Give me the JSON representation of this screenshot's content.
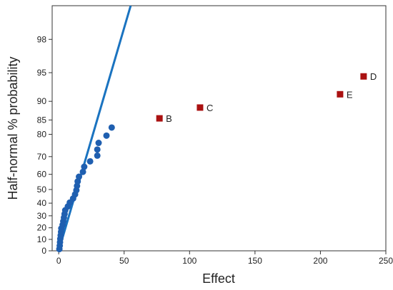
{
  "chart_data": {
    "type": "scatter",
    "title": "",
    "xlabel": "Effect",
    "ylabel": "Half-normal % probability",
    "xlim": [
      -5,
      250
    ],
    "ylim": [
      0,
      99.3
    ],
    "x_ticks": [
      0,
      50,
      100,
      150,
      200,
      250
    ],
    "x_tick_labels": [
      "0",
      "50",
      "100",
      "150",
      "200",
      "250"
    ],
    "y_ticks": [
      0,
      10,
      20,
      30,
      40,
      50,
      60,
      70,
      80,
      85,
      90,
      95,
      98
    ],
    "y_tick_labels": [
      "0",
      "10",
      "20",
      "30",
      "40",
      "50",
      "60",
      "70",
      "80",
      "85",
      "90",
      "95",
      "98"
    ],
    "y_scale": "half-normal probability",
    "grid": false,
    "legend": "none",
    "reference_line": {
      "color": "#1a73c0",
      "points": [
        [
          0,
          0
        ],
        [
          55,
          99.3
        ]
      ]
    },
    "series": [
      {
        "marker": "circle",
        "color": "#1f5fb0",
        "points": [
          {
            "x": 0.5,
            "y": 1.5
          },
          {
            "x": 0.8,
            "y": 4.5
          },
          {
            "x": 1.0,
            "y": 7.5
          },
          {
            "x": 1.2,
            "y": 10.5
          },
          {
            "x": 1.5,
            "y": 13.5
          },
          {
            "x": 1.8,
            "y": 16.5
          },
          {
            "x": 2.0,
            "y": 19.5
          },
          {
            "x": 3.0,
            "y": 22.5
          },
          {
            "x": 3.5,
            "y": 25.5
          },
          {
            "x": 4.0,
            "y": 28.5
          },
          {
            "x": 4.5,
            "y": 31.5
          },
          {
            "x": 5.0,
            "y": 34.5
          },
          {
            "x": 7.0,
            "y": 37.5
          },
          {
            "x": 8.5,
            "y": 40.5
          },
          {
            "x": 11.0,
            "y": 43.5
          },
          {
            "x": 12.5,
            "y": 46.5
          },
          {
            "x": 13.5,
            "y": 49.5
          },
          {
            "x": 14.0,
            "y": 52.5
          },
          {
            "x": 14.5,
            "y": 55.5
          },
          {
            "x": 15.5,
            "y": 58.5
          },
          {
            "x": 18.5,
            "y": 61.5
          },
          {
            "x": 19.5,
            "y": 64.5
          },
          {
            "x": 24.0,
            "y": 67.5
          },
          {
            "x": 29.5,
            "y": 70.5
          },
          {
            "x": 29.5,
            "y": 73.5
          },
          {
            "x": 30.5,
            "y": 76.5
          },
          {
            "x": 36.5,
            "y": 79.5
          },
          {
            "x": 40.5,
            "y": 82.5
          }
        ]
      },
      {
        "marker": "square",
        "color": "#aa1111",
        "points": [
          {
            "x": 77,
            "y": 85.5,
            "label": "B"
          },
          {
            "x": 108,
            "y": 88.5,
            "label": "C"
          },
          {
            "x": 215,
            "y": 91.5,
            "label": "E"
          },
          {
            "x": 233,
            "y": 94.5,
            "label": "D"
          }
        ]
      }
    ]
  }
}
